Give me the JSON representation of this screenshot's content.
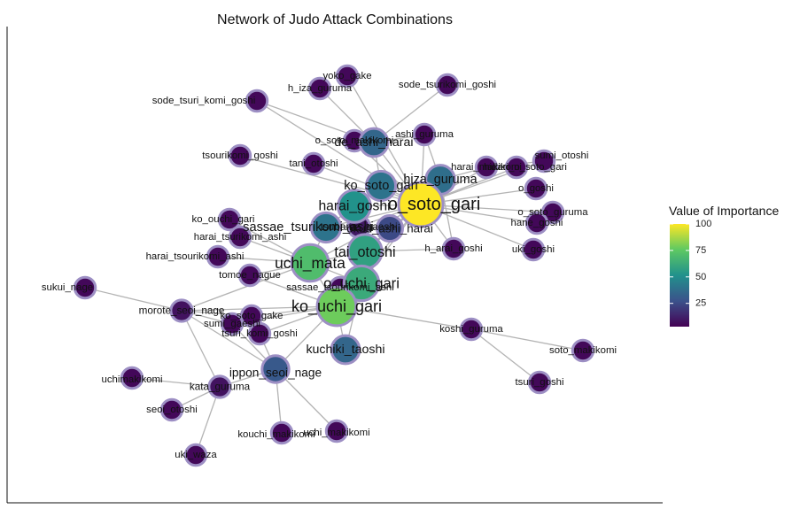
{
  "chart_data": {
    "type": "network",
    "title": "Network of Judo Attack Combinations",
    "legend": {
      "title": "Value of Importance",
      "range": [
        3,
        100
      ],
      "ticks": [
        100,
        75,
        50,
        25
      ],
      "colors": [
        "#440154",
        "#3b528b",
        "#21918c",
        "#5ec962",
        "#fde725"
      ],
      "placement": "right"
    },
    "node_outline": "#9d8fc4",
    "edge_color": "#b4b4b4",
    "nodes": [
      {
        "id": "o_soto_gari",
        "value": 100
      },
      {
        "id": "ko_uchi_gari",
        "value": 78
      },
      {
        "id": "uchi_mata",
        "value": 70
      },
      {
        "id": "o_uchi_gari",
        "value": 62
      },
      {
        "id": "tai_otoshi",
        "value": 58
      },
      {
        "id": "harai_goshi",
        "value": 52
      },
      {
        "id": "ko_soto_gari",
        "value": 40
      },
      {
        "id": "sassae_tsurikomi_ashi",
        "value": 40
      },
      {
        "id": "hiza_guruma",
        "value": 38
      },
      {
        "id": "de_ashi_harai",
        "value": 35
      },
      {
        "id": "kuchiki_taoshi",
        "value": 35
      },
      {
        "id": "ippon_seoi_nage",
        "value": 30
      },
      {
        "id": "okuri_ashi_harai",
        "value": 25
      },
      {
        "id": "tsubame_gaeshi",
        "value": 10
      },
      {
        "id": "morote_seoi_nage",
        "value": 8
      },
      {
        "id": "kata_guruma",
        "value": 8
      },
      {
        "id": "yoko_gake",
        "value": 5
      },
      {
        "id": "h_iza_guruma",
        "value": 5
      },
      {
        "id": "sode_tsurikomi_goshi",
        "value": 5
      },
      {
        "id": "sode_tsuri_komi_goshi",
        "value": 5
      },
      {
        "id": "ashi_guruma",
        "value": 5
      },
      {
        "id": "o_soto_makikomi",
        "value": 5
      },
      {
        "id": "tsourikomi_goshi",
        "value": 5
      },
      {
        "id": "tani_otoshi",
        "value": 5
      },
      {
        "id": "harai_makikomi",
        "value": 5
      },
      {
        "id": "sumi_otoshi",
        "value": 5
      },
      {
        "id": "hidari_o_soto_gari",
        "value": 5
      },
      {
        "id": "o_goshi",
        "value": 5
      },
      {
        "id": "o_soto_guruma",
        "value": 5
      },
      {
        "id": "hane_goshi",
        "value": 5
      },
      {
        "id": "uki_goshi",
        "value": 5
      },
      {
        "id": "h_arai_goshi",
        "value": 5
      },
      {
        "id": "ko_ouchi_gari",
        "value": 5
      },
      {
        "id": "harai_tsurikomi_ashi",
        "value": 5
      },
      {
        "id": "harai_tsourikomi_ashi",
        "value": 5
      },
      {
        "id": "tomoe_nague",
        "value": 5
      },
      {
        "id": "sukui_nage",
        "value": 5
      },
      {
        "id": "ko_soto_gake",
        "value": 5
      },
      {
        "id": "sumi_gaeshi",
        "value": 5
      },
      {
        "id": "tsuri_komi_goshi",
        "value": 5
      },
      {
        "id": "sassae_tsourikomi_ashi",
        "value": 5
      },
      {
        "id": "koshi_guruma",
        "value": 5
      },
      {
        "id": "soto_makikomi",
        "value": 5
      },
      {
        "id": "tsuri_goshi",
        "value": 5
      },
      {
        "id": "uchimakikomi",
        "value": 5
      },
      {
        "id": "seoi_otoshi",
        "value": 5
      },
      {
        "id": "uki_waza",
        "value": 5
      },
      {
        "id": "kouchi_makikomi",
        "value": 5
      },
      {
        "id": "uchi_makikomi",
        "value": 5
      }
    ],
    "edges": [
      [
        "o_soto_gari",
        "ko_uchi_gari"
      ],
      [
        "o_soto_gari",
        "uchi_mata"
      ],
      [
        "o_soto_gari",
        "o_uchi_gari"
      ],
      [
        "o_soto_gari",
        "tai_otoshi"
      ],
      [
        "o_soto_gari",
        "harai_goshi"
      ],
      [
        "o_soto_gari",
        "ko_soto_gari"
      ],
      [
        "o_soto_gari",
        "hiza_guruma"
      ],
      [
        "o_soto_gari",
        "de_ashi_harai"
      ],
      [
        "o_soto_gari",
        "sassae_tsurikomi_ashi"
      ],
      [
        "o_soto_gari",
        "okuri_ashi_harai"
      ],
      [
        "o_soto_gari",
        "tsubame_gaeshi"
      ],
      [
        "o_soto_gari",
        "harai_makikomi"
      ],
      [
        "o_soto_gari",
        "hidari_o_soto_gari"
      ],
      [
        "o_soto_gari",
        "sumi_otoshi"
      ],
      [
        "o_soto_gari",
        "o_goshi"
      ],
      [
        "o_soto_gari",
        "o_soto_guruma"
      ],
      [
        "o_soto_gari",
        "hane_goshi"
      ],
      [
        "o_soto_gari",
        "uki_goshi"
      ],
      [
        "o_soto_gari",
        "h_arai_goshi"
      ],
      [
        "o_soto_gari",
        "ashi_guruma"
      ],
      [
        "o_soto_gari",
        "yoko_gake"
      ],
      [
        "o_soto_gari",
        "tani_otoshi"
      ],
      [
        "o_soto_gari",
        "tsourikomi_goshi"
      ],
      [
        "o_soto_gari",
        "sode_tsuri_komi_goshi"
      ],
      [
        "o_soto_gari",
        "o_soto_makikomi"
      ],
      [
        "ko_uchi_gari",
        "uchi_mata"
      ],
      [
        "ko_uchi_gari",
        "o_uchi_gari"
      ],
      [
        "ko_uchi_gari",
        "tai_otoshi"
      ],
      [
        "ko_uchi_gari",
        "ippon_seoi_nage"
      ],
      [
        "ko_uchi_gari",
        "kuchiki_taoshi"
      ],
      [
        "ko_uchi_gari",
        "morote_seoi_nage"
      ],
      [
        "ko_uchi_gari",
        "koshi_guruma"
      ],
      [
        "ko_uchi_gari",
        "ko_soto_gake"
      ],
      [
        "ko_uchi_gari",
        "sumi_gaeshi"
      ],
      [
        "ko_uchi_gari",
        "tsuri_komi_goshi"
      ],
      [
        "ko_uchi_gari",
        "sassae_tsourikomi_ashi"
      ],
      [
        "ko_uchi_gari",
        "tomoe_nague"
      ],
      [
        "uchi_mata",
        "o_uchi_gari"
      ],
      [
        "uchi_mata",
        "tai_otoshi"
      ],
      [
        "uchi_mata",
        "sassae_tsurikomi_ashi"
      ],
      [
        "uchi_mata",
        "harai_tsurikomi_ashi"
      ],
      [
        "uchi_mata",
        "harai_tsourikomi_ashi"
      ],
      [
        "uchi_mata",
        "ko_ouchi_gari"
      ],
      [
        "uchi_mata",
        "tomoe_nague"
      ],
      [
        "uchi_mata",
        "morote_seoi_nage"
      ],
      [
        "tai_otoshi",
        "o_uchi_gari"
      ],
      [
        "tai_otoshi",
        "harai_goshi"
      ],
      [
        "tai_otoshi",
        "okuri_ashi_harai"
      ],
      [
        "tai_otoshi",
        "h_arai_goshi"
      ],
      [
        "tai_otoshi",
        "tsubame_gaeshi"
      ],
      [
        "harai_goshi",
        "ko_soto_gari"
      ],
      [
        "harai_goshi",
        "sassae_tsurikomi_ashi"
      ],
      [
        "de_ashi_harai",
        "h_iza_guruma"
      ],
      [
        "de_ashi_harai",
        "sode_tsurikomi_goshi"
      ],
      [
        "de_ashi_harai",
        "sode_tsuri_komi_goshi"
      ],
      [
        "de_ashi_harai",
        "o_soto_makikomi"
      ],
      [
        "de_ashi_harai",
        "ashi_guruma"
      ],
      [
        "de_ashi_harai",
        "ko_soto_gari"
      ],
      [
        "hiza_guruma",
        "harai_makikomi"
      ],
      [
        "hiza_guruma",
        "ashi_guruma"
      ],
      [
        "hiza_guruma",
        "h_arai_goshi"
      ],
      [
        "ippon_seoi_nage",
        "kata_guruma"
      ],
      [
        "ippon_seoi_nage",
        "morote_seoi_nage"
      ],
      [
        "ippon_seoi_nage",
        "kouchi_makikomi"
      ],
      [
        "ippon_seoi_nage",
        "uchi_makikomi"
      ],
      [
        "ippon_seoi_nage",
        "tsuri_komi_goshi"
      ],
      [
        "ippon_seoi_nage",
        "sumi_gaeshi"
      ],
      [
        "kata_guruma",
        "uchimakikomi"
      ],
      [
        "kata_guruma",
        "seoi_otoshi"
      ],
      [
        "kata_guruma",
        "uki_waza"
      ],
      [
        "kata_guruma",
        "morote_seoi_nage"
      ],
      [
        "morote_seoi_nage",
        "sukui_nage"
      ],
      [
        "morote_seoi_nage",
        "ko_soto_gake"
      ],
      [
        "morote_seoi_nage",
        "sumi_gaeshi"
      ],
      [
        "koshi_guruma",
        "soto_makikomi"
      ],
      [
        "koshi_guruma",
        "tsuri_goshi"
      ],
      [
        "o_uchi_gari",
        "kuchiki_taoshi"
      ],
      [
        "o_uchi_gari",
        "sassae_tsourikomi_ashi"
      ],
      [
        "sassae_tsurikomi_ashi",
        "tsubame_gaeshi"
      ],
      [
        "okuri_ashi_harai",
        "tsubame_gaeshi"
      ],
      [
        "harai_makikomi",
        "sumi_otoshi"
      ],
      [
        "hidari_o_soto_gari",
        "harai_makikomi"
      ]
    ]
  }
}
